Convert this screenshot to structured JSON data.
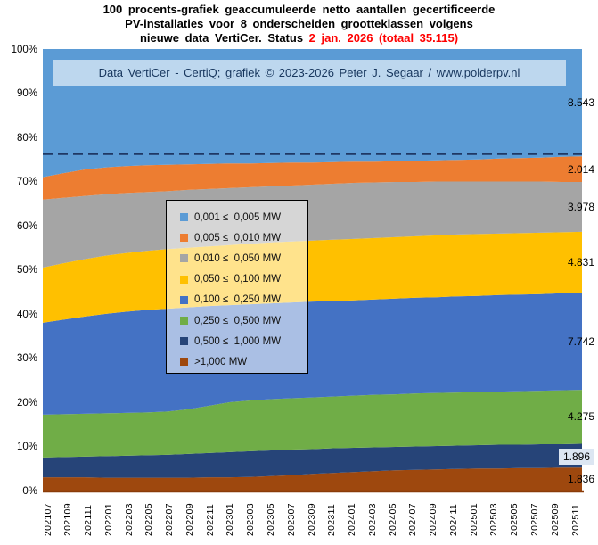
{
  "title": {
    "line1": "100 procents-grafiek geaccumuleerde netto aantallen gecertificeerde",
    "line2": "PV-installaties voor 8 onderscheiden grootteklassen volgens",
    "line3_black": "nieuwe data VertiCer. Status ",
    "line3_red": "2 jan. 2026  (totaal 35.115)"
  },
  "banner": {
    "text": "Data VertiCer - CertiQ;  grafiek © 2023-2026  Peter J. Segaar / www.polderpv.nl",
    "bg_color": "#BDD7EE"
  },
  "y_axis": {
    "labels": [
      "100%",
      "90%",
      "80%",
      "70%",
      "60%",
      "50%",
      "40%",
      "30%",
      "20%",
      "10%",
      "0%"
    ]
  },
  "x_axis": {
    "labels": [
      "202107",
      "202109",
      "202111",
      "202201",
      "202203",
      "202205",
      "202207",
      "202209",
      "202211",
      "202301",
      "202303",
      "202305",
      "202307",
      "202309",
      "202311",
      "202401",
      "202403",
      "202405",
      "202407",
      "202409",
      "202411",
      "202501",
      "202503",
      "202505",
      "202507",
      "202509",
      "202511"
    ]
  },
  "legend": {
    "items": [
      {
        "label": "0,001 ≤  0,005 MW",
        "color": "#5B9BD5"
      },
      {
        "label": "0,005 ≤  0,010 MW",
        "color": "#ED7D31"
      },
      {
        "label": "0,010 ≤  0,050 MW",
        "color": "#A5A5A5"
      },
      {
        "label": "0,050 ≤  0,100 MW",
        "color": "#FFC000"
      },
      {
        "label": "0,100 ≤  0,250 MW",
        "color": "#4472C4"
      },
      {
        "label": "0,250 ≤  0,500 MW",
        "color": "#70AD47"
      },
      {
        "label": "0,500 ≤  1,000 MW",
        "color": "#264478"
      },
      {
        "label": ">1,000 MW",
        "color": "#9E480E"
      }
    ]
  },
  "chart_data": {
    "type": "area",
    "stacking": "percent",
    "title": "100 procents-grafiek geaccumuleerde netto aantallen gecertificeerde PV-installaties voor 8 onderscheiden grootteklassen, status 2 jan. 2026, totaal 35.115",
    "total": 35115,
    "ylim": [
      0,
      100
    ],
    "grid": false,
    "legend_position": "center-left overlay",
    "x": [
      "202107",
      "202109",
      "202111",
      "202201",
      "202203",
      "202205",
      "202207",
      "202209",
      "202211",
      "202301",
      "202303",
      "202305",
      "202307",
      "202309",
      "202311",
      "202401",
      "202403",
      "202405",
      "202407",
      "202409",
      "202411",
      "202501",
      "202503",
      "202505",
      "202507",
      "202509",
      "202511"
    ],
    "reference_line": {
      "pct": 76.2,
      "style": "dashed",
      "color": "#1F3864"
    },
    "axis_line_color": "#8A3B08",
    "series_note": "bottom-to-top stacking; cumulative_top_pct is the estimated upper boundary (%) of each band at every x tick; final_count is the data label shown at the right edge",
    "series": [
      {
        "name": ">1,000 MW",
        "color": "#9E480E",
        "final_count": 1836,
        "final_count_display": "1.836",
        "label_boxed": false,
        "cumulative_top_pct": [
          3.0,
          3.0,
          3.0,
          2.9,
          2.9,
          2.9,
          2.9,
          2.9,
          3.0,
          3.0,
          3.1,
          3.3,
          3.5,
          3.8,
          4.0,
          4.2,
          4.4,
          4.6,
          4.7,
          4.8,
          4.9,
          5.0,
          5.0,
          5.1,
          5.1,
          5.2,
          5.2
        ]
      },
      {
        "name": "0,500 ≤  1,000 MW",
        "color": "#264478",
        "final_count": 1896,
        "final_count_display": "1.896",
        "label_boxed": true,
        "cumulative_top_pct": [
          7.5,
          7.6,
          7.7,
          7.8,
          7.9,
          8.0,
          8.1,
          8.3,
          8.5,
          8.7,
          8.9,
          9.1,
          9.3,
          9.4,
          9.6,
          9.7,
          9.8,
          9.9,
          10.0,
          10.1,
          10.2,
          10.3,
          10.4,
          10.4,
          10.5,
          10.5,
          10.6
        ]
      },
      {
        "name": "0,250 ≤  0,500 MW",
        "color": "#70AD47",
        "final_count": 4275,
        "final_count_display": "4.275",
        "label_boxed": false,
        "cumulative_top_pct": [
          17.2,
          17.3,
          17.4,
          17.5,
          17.6,
          17.7,
          17.9,
          18.4,
          19.2,
          20.0,
          20.4,
          20.7,
          20.9,
          21.1,
          21.3,
          21.5,
          21.7,
          21.8,
          22.0,
          22.1,
          22.2,
          22.3,
          22.4,
          22.5,
          22.6,
          22.7,
          22.8
        ]
      },
      {
        "name": "0,100 ≤  0,250 MW",
        "color": "#4472C4",
        "final_count": 7742,
        "final_count_display": "7.742",
        "label_boxed": false,
        "cumulative_top_pct": [
          38.0,
          38.7,
          39.4,
          40.0,
          40.5,
          40.9,
          41.2,
          41.5,
          41.8,
          42.0,
          42.2,
          42.4,
          42.6,
          42.8,
          42.9,
          43.1,
          43.3,
          43.5,
          43.7,
          43.8,
          44.0,
          44.1,
          44.3,
          44.4,
          44.5,
          44.7,
          44.8
        ]
      },
      {
        "name": "0,050 ≤  0,100 MW",
        "color": "#FFC000",
        "final_count": 4831,
        "final_count_display": "4.831",
        "label_boxed": false,
        "cumulative_top_pct": [
          50.5,
          51.5,
          52.4,
          53.2,
          53.8,
          54.3,
          54.7,
          55.0,
          55.3,
          55.6,
          55.9,
          56.2,
          56.4,
          56.6,
          56.8,
          57.0,
          57.2,
          57.4,
          57.6,
          57.8,
          58.0,
          58.1,
          58.2,
          58.3,
          58.4,
          58.5,
          58.6
        ]
      },
      {
        "name": "0,010 ≤  0,050 MW",
        "color": "#A5A5A5",
        "final_count": 3978,
        "final_count_display": "3.978",
        "label_boxed": false,
        "cumulative_top_pct": [
          65.9,
          66.3,
          66.7,
          67.1,
          67.4,
          67.6,
          67.8,
          68.1,
          68.3,
          68.5,
          68.7,
          68.9,
          69.1,
          69.3,
          69.5,
          69.7,
          69.8,
          69.9,
          69.9,
          70.0,
          70.0,
          70.0,
          70.0,
          70.0,
          70.0,
          69.9,
          69.9
        ]
      },
      {
        "name": "0,005 ≤  0,010 MW",
        "color": "#ED7D31",
        "final_count": 2014,
        "final_count_display": "2.014",
        "label_boxed": false,
        "cumulative_top_pct": [
          71.0,
          71.9,
          72.7,
          73.2,
          73.5,
          73.7,
          73.8,
          73.9,
          74.0,
          74.1,
          74.1,
          74.2,
          74.3,
          74.3,
          74.4,
          74.5,
          74.5,
          74.6,
          74.7,
          74.8,
          74.9,
          75.0,
          75.2,
          75.3,
          75.4,
          75.6,
          75.7
        ]
      },
      {
        "name": "0,001 ≤  0,005 MW",
        "color": "#5B9BD5",
        "final_count": 8543,
        "final_count_display": "8.543",
        "label_boxed": false,
        "cumulative_top_pct": [
          100,
          100,
          100,
          100,
          100,
          100,
          100,
          100,
          100,
          100,
          100,
          100,
          100,
          100,
          100,
          100,
          100,
          100,
          100,
          100,
          100,
          100,
          100,
          100,
          100,
          100,
          100
        ]
      }
    ]
  }
}
